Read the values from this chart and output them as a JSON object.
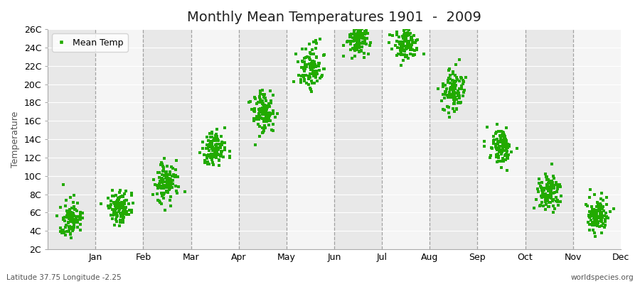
{
  "title": "Monthly Mean Temperatures 1901  -  2009",
  "ylabel": "Temperature",
  "xlabel": "",
  "subtitle_left": "Latitude 37.75 Longitude -2.25",
  "subtitle_right": "worldspecies.org",
  "legend_label": "Mean Temp",
  "dot_color": "#22aa00",
  "bg_color": "#f0f0f0",
  "band_color_light": "#f5f5f5",
  "band_color_dark": "#e8e8e8",
  "ylim": [
    2,
    26
  ],
  "yticks": [
    2,
    4,
    6,
    8,
    10,
    12,
    14,
    16,
    18,
    20,
    22,
    24,
    26
  ],
  "ytick_labels": [
    "2C",
    "4C",
    "6C",
    "8C",
    "10C",
    "12C",
    "14C",
    "16C",
    "18C",
    "20C",
    "22C",
    "24C",
    "26C"
  ],
  "months": [
    "Jan",
    "Feb",
    "Mar",
    "Apr",
    "May",
    "Jun",
    "Jul",
    "Aug",
    "Sep",
    "Oct",
    "Nov",
    "Dec"
  ],
  "month_mean_temps": [
    5.2,
    6.5,
    9.2,
    12.8,
    16.8,
    21.8,
    24.8,
    24.2,
    19.2,
    13.2,
    8.2,
    5.8
  ],
  "month_std_temps": [
    1.0,
    0.9,
    1.1,
    1.0,
    1.2,
    1.2,
    1.0,
    1.0,
    1.1,
    1.0,
    1.0,
    0.9
  ],
  "n_years": 109,
  "dot_size": 5,
  "title_fontsize": 14,
  "axis_fontsize": 9,
  "tick_fontsize": 9
}
